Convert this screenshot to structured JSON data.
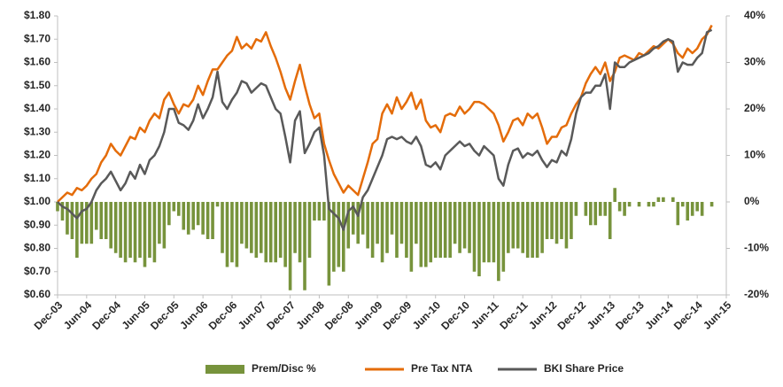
{
  "chart_data": {
    "type": "combo",
    "categories": [
      "Dec-03",
      null,
      null,
      null,
      null,
      null,
      "Jun-04",
      null,
      null,
      null,
      null,
      null,
      "Dec-04",
      null,
      null,
      null,
      null,
      null,
      "Jun-05",
      null,
      null,
      null,
      null,
      null,
      "Dec-05",
      null,
      null,
      null,
      null,
      null,
      "Jun-06",
      null,
      null,
      null,
      null,
      null,
      "Dec-06",
      null,
      null,
      null,
      null,
      null,
      "Jun-07",
      null,
      null,
      null,
      null,
      null,
      "Dec-07",
      null,
      null,
      null,
      null,
      null,
      "Jun-08",
      null,
      null,
      null,
      null,
      null,
      "Dec-08",
      null,
      null,
      null,
      null,
      null,
      "Jun-09",
      null,
      null,
      null,
      null,
      null,
      "Dec-09",
      null,
      null,
      null,
      null,
      null,
      "Jun-10",
      null,
      null,
      null,
      null,
      null,
      "Dec-10",
      null,
      null,
      null,
      null,
      null,
      "Jun-11",
      null,
      null,
      null,
      null,
      null,
      "Dec-11",
      null,
      null,
      null,
      null,
      null,
      "Jun-12",
      null,
      null,
      null,
      null,
      null,
      "Dec-12",
      null,
      null,
      null,
      null,
      null,
      "Jun-13",
      null,
      null,
      null,
      null,
      null,
      "Dec-13",
      null,
      null,
      null,
      null,
      null,
      "Jun-14",
      null,
      null,
      null,
      null,
      null,
      "Dec-14",
      null,
      null,
      null,
      null,
      null,
      "Jun-15"
    ],
    "series": [
      {
        "name": "Prem/Disc %",
        "type": "bar",
        "axis": "y2",
        "color": "#77933c",
        "values": [
          -2,
          -4,
          -7,
          -8,
          -12,
          -9,
          -9,
          -9,
          -6,
          -8,
          -8,
          -10,
          -11,
          -12,
          -13,
          -12,
          -13,
          -12,
          -14,
          -12,
          -13,
          -9,
          -10,
          -5,
          -2,
          -3,
          -6,
          -7,
          -6,
          -5,
          -7,
          -8,
          -8,
          -1,
          -11,
          -14,
          -13,
          -14,
          -9,
          -10,
          -11,
          -12,
          -11,
          -13,
          -13,
          -13,
          -12,
          -14,
          -19,
          -11,
          -13,
          -19,
          -12,
          -4,
          -4,
          -4,
          -18,
          -15,
          -14,
          -15,
          -10,
          -7,
          -9,
          -7,
          -10,
          -12,
          -9,
          -13,
          -11,
          -7,
          -12,
          -9,
          -12,
          -15,
          -9,
          -14,
          -14,
          -13,
          -12,
          -12,
          -12,
          -12,
          -9,
          -11,
          -10,
          -11,
          -15,
          -16,
          -13,
          -13,
          -13,
          -17,
          -15,
          -11,
          -10,
          -10,
          -11,
          -12,
          -12,
          -12,
          -11,
          -8,
          -8,
          -9,
          -8,
          -10,
          -8,
          -3,
          0,
          -3,
          -5,
          -5,
          -3,
          -3,
          -8,
          3,
          -2,
          -3,
          -1,
          0,
          -1,
          0,
          -1,
          -1,
          1,
          1,
          0,
          1,
          -5,
          -1,
          -4,
          -3,
          -2,
          -3,
          0,
          -1,
          null,
          null,
          null
        ]
      },
      {
        "name": "Pre Tax NTA",
        "type": "line",
        "color": "#e46c0a",
        "values": [
          1.0,
          1.02,
          1.04,
          1.03,
          1.06,
          1.05,
          1.07,
          1.1,
          1.12,
          1.17,
          1.2,
          1.25,
          1.22,
          1.2,
          1.24,
          1.28,
          1.27,
          1.32,
          1.3,
          1.35,
          1.38,
          1.36,
          1.44,
          1.47,
          1.42,
          1.38,
          1.42,
          1.41,
          1.44,
          1.5,
          1.46,
          1.52,
          1.57,
          1.57,
          1.6,
          1.63,
          1.65,
          1.71,
          1.66,
          1.68,
          1.66,
          1.7,
          1.69,
          1.73,
          1.67,
          1.62,
          1.56,
          1.49,
          1.44,
          1.52,
          1.59,
          1.5,
          1.42,
          1.36,
          1.38,
          1.25,
          1.18,
          1.12,
          1.08,
          1.04,
          1.07,
          1.05,
          1.03,
          1.1,
          1.17,
          1.25,
          1.27,
          1.38,
          1.42,
          1.38,
          1.45,
          1.4,
          1.43,
          1.47,
          1.4,
          1.44,
          1.35,
          1.32,
          1.33,
          1.3,
          1.37,
          1.38,
          1.37,
          1.41,
          1.38,
          1.4,
          1.43,
          1.43,
          1.42,
          1.4,
          1.38,
          1.33,
          1.26,
          1.3,
          1.35,
          1.36,
          1.33,
          1.38,
          1.36,
          1.38,
          1.32,
          1.25,
          1.28,
          1.28,
          1.32,
          1.33,
          1.38,
          1.42,
          1.45,
          1.51,
          1.55,
          1.58,
          1.55,
          1.6,
          1.52,
          1.56,
          1.62,
          1.63,
          1.62,
          1.61,
          1.64,
          1.63,
          1.65,
          1.67,
          1.66,
          1.68,
          1.7,
          1.68,
          1.64,
          1.62,
          1.66,
          1.64,
          1.66,
          1.7,
          1.72,
          1.76,
          null,
          null,
          null
        ]
      },
      {
        "name": "BKI Share Price",
        "type": "line",
        "color": "#595959",
        "values": [
          1.0,
          0.98,
          0.97,
          0.95,
          0.93,
          0.96,
          0.97,
          1.0,
          1.05,
          1.08,
          1.1,
          1.13,
          1.09,
          1.05,
          1.08,
          1.13,
          1.1,
          1.16,
          1.12,
          1.18,
          1.2,
          1.24,
          1.3,
          1.4,
          1.4,
          1.34,
          1.33,
          1.31,
          1.35,
          1.42,
          1.36,
          1.4,
          1.45,
          1.56,
          1.43,
          1.4,
          1.44,
          1.47,
          1.52,
          1.51,
          1.47,
          1.49,
          1.51,
          1.5,
          1.45,
          1.4,
          1.38,
          1.28,
          1.17,
          1.35,
          1.39,
          1.21,
          1.25,
          1.3,
          1.32,
          1.2,
          0.97,
          0.95,
          0.93,
          0.88,
          0.96,
          0.98,
          0.94,
          1.02,
          1.05,
          1.1,
          1.15,
          1.2,
          1.27,
          1.28,
          1.27,
          1.28,
          1.26,
          1.25,
          1.28,
          1.24,
          1.16,
          1.15,
          1.17,
          1.14,
          1.2,
          1.22,
          1.24,
          1.26,
          1.24,
          1.25,
          1.22,
          1.2,
          1.24,
          1.22,
          1.2,
          1.1,
          1.07,
          1.16,
          1.22,
          1.23,
          1.19,
          1.21,
          1.2,
          1.22,
          1.18,
          1.15,
          1.18,
          1.17,
          1.22,
          1.2,
          1.27,
          1.38,
          1.45,
          1.47,
          1.47,
          1.5,
          1.5,
          1.55,
          1.4,
          1.6,
          1.58,
          1.58,
          1.6,
          1.61,
          1.62,
          1.63,
          1.64,
          1.66,
          1.67,
          1.69,
          1.7,
          1.69,
          1.56,
          1.6,
          1.59,
          1.59,
          1.62,
          1.64,
          1.73,
          1.74,
          null,
          null,
          null
        ]
      }
    ],
    "ylim": [
      0.6,
      1.8
    ],
    "yticks": [
      {
        "value": 0.6,
        "label": "$0.60"
      },
      {
        "value": 0.7,
        "label": "$0.70"
      },
      {
        "value": 0.8,
        "label": "$0.80"
      },
      {
        "value": 0.9,
        "label": "$0.90"
      },
      {
        "value": 1.0,
        "label": "$1.00"
      },
      {
        "value": 1.1,
        "label": "$1.10"
      },
      {
        "value": 1.2,
        "label": "$1.20"
      },
      {
        "value": 1.3,
        "label": "$1.30"
      },
      {
        "value": 1.4,
        "label": "$1.40"
      },
      {
        "value": 1.5,
        "label": "$1.50"
      },
      {
        "value": 1.6,
        "label": "$1.60"
      },
      {
        "value": 1.7,
        "label": "$1.70"
      },
      {
        "value": 1.8,
        "label": "$1.80"
      }
    ],
    "y2lim": [
      -20,
      40
    ],
    "y2ticks": [
      {
        "value": -20,
        "label": "-20%"
      },
      {
        "value": -10,
        "label": "-10%"
      },
      {
        "value": 0,
        "label": "0%"
      },
      {
        "value": 10,
        "label": "10%"
      },
      {
        "value": 20,
        "label": "20%"
      },
      {
        "value": 30,
        "label": "30%"
      },
      {
        "value": 40,
        "label": "40%"
      }
    ],
    "grid": false,
    "legend": "bottom"
  }
}
